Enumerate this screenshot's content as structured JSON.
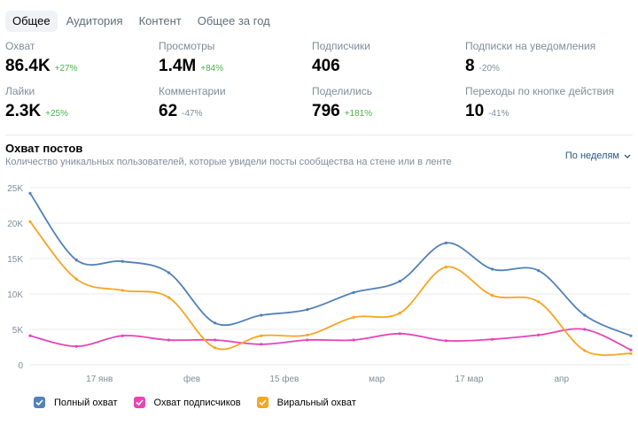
{
  "tabs": [
    "Общее",
    "Аудитория",
    "Контент",
    "Общее за год"
  ],
  "stats": [
    {
      "label": "Охват",
      "value": "86.4K",
      "delta": "+27%",
      "dir": "pos"
    },
    {
      "label": "Просмотры",
      "value": "1.4M",
      "delta": "+84%",
      "dir": "pos"
    },
    {
      "label": "Подписчики",
      "value": "406",
      "delta": "",
      "dir": "pos"
    },
    {
      "label": "Подписки на уведомления",
      "value": "8",
      "delta": "-20%",
      "dir": "neg"
    },
    {
      "label": "Лайки",
      "value": "2.3K",
      "delta": "+25%",
      "dir": "pos"
    },
    {
      "label": "Комментарии",
      "value": "62",
      "delta": "-47%",
      "dir": "neg"
    },
    {
      "label": "Поделились",
      "value": "796",
      "delta": "+181%",
      "dir": "pos"
    },
    {
      "label": "Переходы по кнопке действия",
      "value": "10",
      "delta": "-41%",
      "dir": "neg"
    }
  ],
  "section": {
    "title": "Охват постов",
    "subtitle": "Количество уникальных пользователей, которые увидели посты сообщества на стене или в ленте",
    "period": "По неделям"
  },
  "chart_data": {
    "type": "line",
    "title": "Охват постов",
    "ylim": [
      0,
      25000
    ],
    "y_ticks": [
      "25K",
      "20K",
      "15K",
      "10K",
      "5K",
      "0"
    ],
    "x_tick_labels": [
      {
        "label": "17 янв",
        "i": 1.5
      },
      {
        "label": "фев",
        "i": 3.5
      },
      {
        "label": "15 фев",
        "i": 5.5
      },
      {
        "label": "мар",
        "i": 7.5
      },
      {
        "label": "17 мар",
        "i": 9.5
      },
      {
        "label": "апр",
        "i": 11.5
      }
    ],
    "grid": true,
    "legend_position": "bottom-left",
    "series": [
      {
        "name": "Полный охват",
        "color": "#5181b8",
        "values": [
          24200,
          14800,
          14600,
          13000,
          5900,
          7000,
          7800,
          10200,
          11800,
          17200,
          13500,
          13300,
          7000,
          4100
        ]
      },
      {
        "name": "Охват подписчиков",
        "color": "#e645b7",
        "values": [
          4100,
          2600,
          4100,
          3500,
          3500,
          2900,
          3500,
          3500,
          4400,
          3400,
          3600,
          4200,
          5000,
          2100
        ]
      },
      {
        "name": "Виральный охват",
        "color": "#f5a623",
        "values": [
          20200,
          12100,
          10500,
          9500,
          2400,
          4100,
          4200,
          6700,
          7300,
          13800,
          9800,
          8900,
          2000,
          1600
        ]
      }
    ]
  }
}
